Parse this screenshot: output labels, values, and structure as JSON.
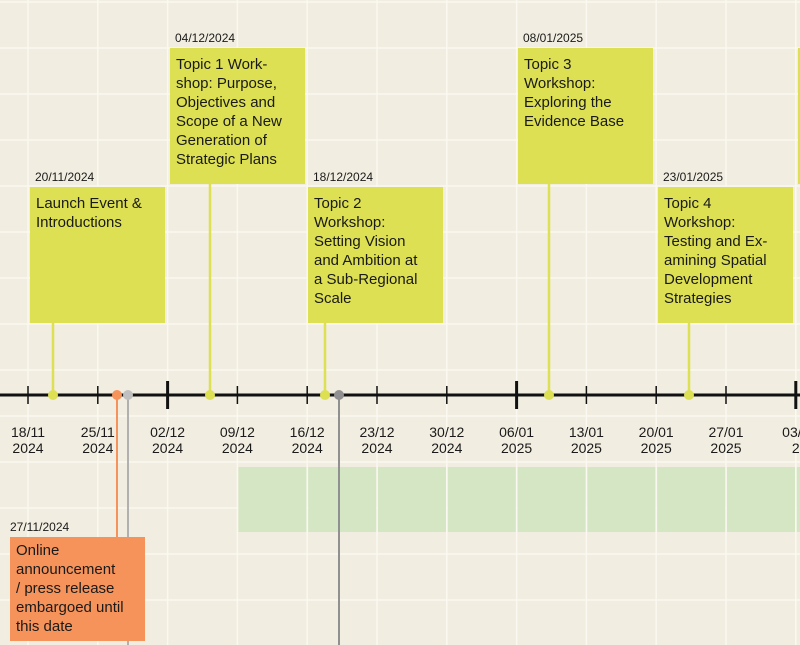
{
  "ticks": [
    {
      "lines": [
        "18/11",
        "2024"
      ]
    },
    {
      "lines": [
        "25/11",
        "2024"
      ]
    },
    {
      "lines": [
        "02/12",
        "2024"
      ],
      "major": true
    },
    {
      "lines": [
        "09/12",
        "2024"
      ]
    },
    {
      "lines": [
        "16/12",
        "2024"
      ]
    },
    {
      "lines": [
        "23/12",
        "2024"
      ]
    },
    {
      "lines": [
        "30/12",
        "2024"
      ]
    },
    {
      "lines": [
        "06/01",
        "2025"
      ],
      "major": true
    },
    {
      "lines": [
        "13/01",
        "2025"
      ]
    },
    {
      "lines": [
        "20/01",
        "2025"
      ]
    },
    {
      "lines": [
        "27/01",
        "2025"
      ]
    },
    {
      "lines": [
        "03/0",
        "2"
      ],
      "major": true
    }
  ],
  "events": [
    {
      "date": "20/11/2024",
      "lines": [
        "Launch Event &",
        "Introductions"
      ]
    },
    {
      "date": "04/12/2024",
      "lines": [
        "Topic 1 Work-",
        "shop: Purpose,",
        "Objectives and",
        "Scope of a New",
        "Generation of",
        "Strategic Plans"
      ]
    },
    {
      "date": "18/12/2024",
      "lines": [
        "Topic 2",
        "Workshop:",
        "Setting Vision",
        "and Ambition at",
        "a Sub-Regional",
        "Scale"
      ]
    },
    {
      "date": "08/01/2025",
      "lines": [
        "Topic 3",
        "Workshop:",
        "Exploring the",
        "Evidence Base"
      ]
    },
    {
      "date": "23/01/2025",
      "lines": [
        "Topic 4",
        "Workshop:",
        "Testing and Ex-",
        "amining Spatial",
        "Development",
        "Strategies"
      ]
    },
    {
      "date": "27/11/2024",
      "lines": [
        "Online",
        "announcement",
        "/ press release",
        "embargoed until",
        "this date"
      ]
    }
  ]
}
